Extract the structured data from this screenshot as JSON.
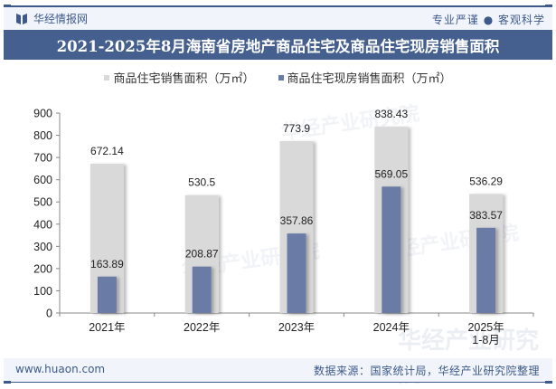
{
  "header": {
    "brand": "华经情报网",
    "slogan": "专业严谨 ● 客观科学",
    "title": "2021-2025年8月海南省房地产商品住宅及商品住宅现房销售面积"
  },
  "colors": {
    "series1": "#d9d9d9",
    "series2": "#6a7ba6",
    "title_bg": "#45608f",
    "accent": "#3d5a8a"
  },
  "legend": [
    {
      "label": "商品住宅销售面积（万㎡）"
    },
    {
      "label": "商品住宅现房销售面积（万㎡）"
    }
  ],
  "watermark": {
    "text": "华经产业研究院",
    "url": "www.huaon.com"
  },
  "footer": {
    "url": "www.huaon.com",
    "source": "数据来源：国家统计局，华经产业研究院整理"
  },
  "chart_data": {
    "type": "bar",
    "title": "2021-2025年8月海南省房地产商品住宅及商品住宅现房销售面积",
    "categories": [
      "2021年",
      "2022年",
      "2023年",
      "2024年",
      "2025年 1-8月"
    ],
    "series": [
      {
        "name": "商品住宅销售面积（万㎡）",
        "values": [
          672.14,
          530.5,
          773.9,
          838.43,
          536.29
        ]
      },
      {
        "name": "商品住宅现房销售面积（万㎡）",
        "values": [
          163.89,
          208.87,
          357.86,
          569.05,
          383.57
        ]
      }
    ],
    "value_labels": [
      [
        "672.14",
        "530.5",
        "773.9",
        "838.43",
        "536.29"
      ],
      [
        "163.89",
        "208.87",
        "357.86",
        "569.05",
        "383.57"
      ]
    ],
    "xlabel": "",
    "ylabel": "",
    "ylim": [
      0,
      900
    ],
    "yticks": [
      0,
      100,
      200,
      300,
      400,
      500,
      600,
      700,
      800,
      900
    ],
    "grid": false,
    "legend_position": "top",
    "overlap": true
  }
}
